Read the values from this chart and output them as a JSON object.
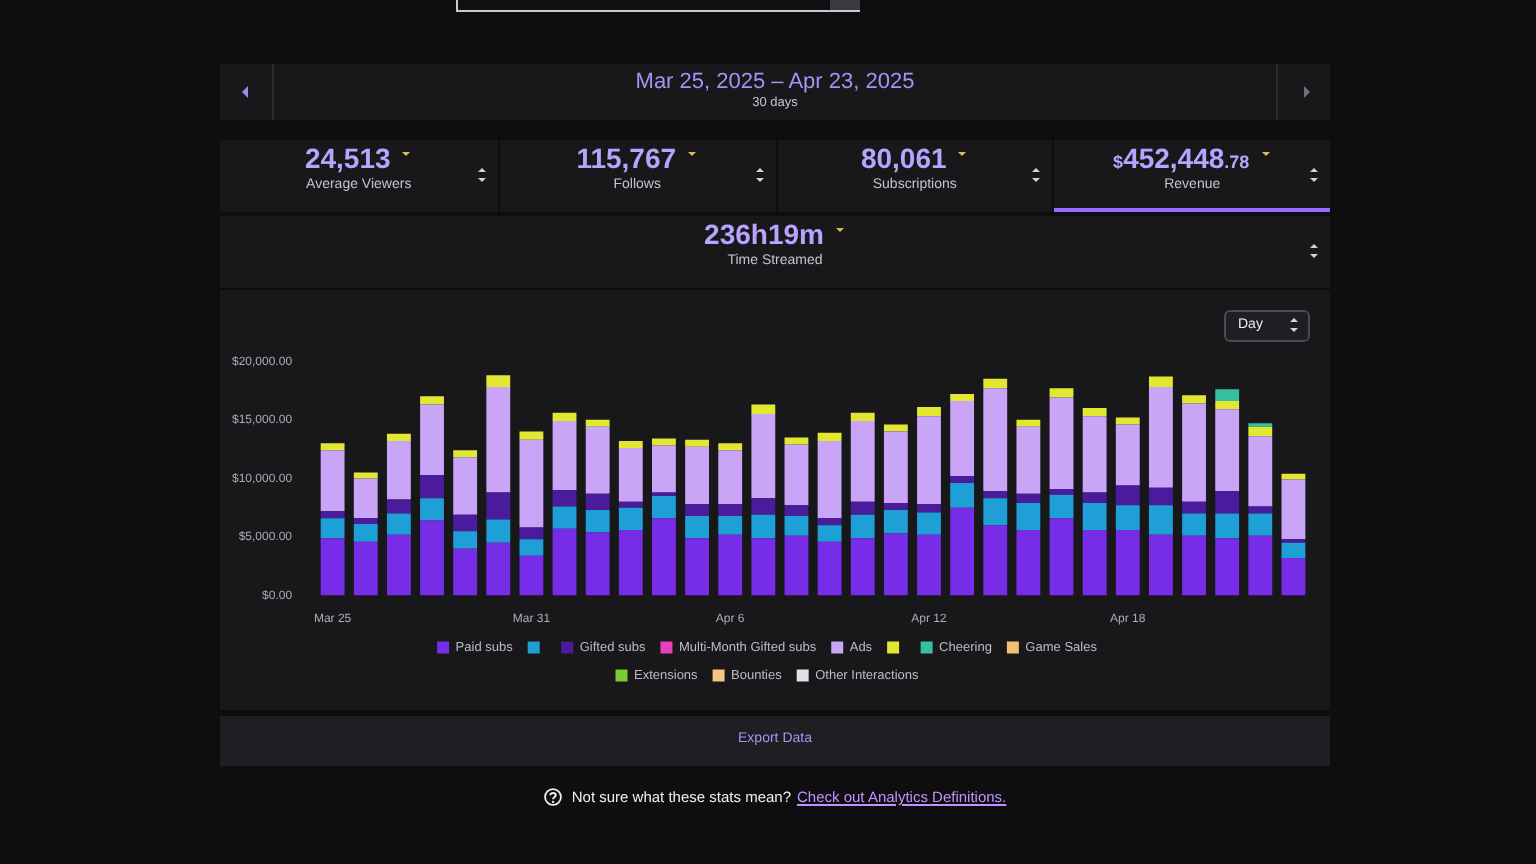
{
  "chart_data": [
    {
      "type": "other",
      "title": "Mar 25, 2025 – Apr 23, 2025",
      "subtitle": "30 days",
      "annotations": [
        "24,513",
        "Average Viewers",
        "115,767",
        "Follows",
        "80,061",
        "Subscriptions",
        "$452,448.78",
        "Revenue",
        "236h19m",
        "Time Streamed"
      ]
    },
    {
      "type": "bar",
      "stacked": true,
      "legend": "bottom",
      "categories": [
        "Mar 25",
        null,
        null,
        null,
        null,
        null,
        "Mar 31",
        null,
        null,
        null,
        null,
        null,
        "Apr 6",
        null,
        null,
        null,
        null,
        null,
        "Apr 12",
        null,
        null,
        null,
        null,
        null,
        "Apr 18",
        null,
        null,
        null,
        null,
        null
      ],
      "ylim": [
        0,
        20000
      ],
      "yticks": [
        {
          "value": 0,
          "label": "$0.00"
        },
        {
          "value": 5000,
          "label": "$5,000.00"
        },
        {
          "value": 10000,
          "label": "$10,000.00"
        },
        {
          "value": 15000,
          "label": "$15,000.00"
        },
        {
          "value": 20000,
          "label": "$20,000.00"
        }
      ],
      "series": [
        {
          "name": "Paid subs",
          "color": "#772ce8",
          "values": [
            4900,
            4600,
            5200,
            6400,
            4000,
            4500,
            3400,
            5700,
            5400,
            5600,
            6600,
            4900,
            5200,
            4900,
            5100,
            4600,
            4900,
            5300,
            5200,
            7500,
            6000,
            5600,
            6600,
            5600,
            5600,
            5200,
            5100,
            4900,
            5100,
            3200
          ]
        },
        {
          "color": "#1e9fd6",
          "values": [
            1700,
            1500,
            1800,
            1900,
            1500,
            2000,
            1400,
            1900,
            1900,
            1900,
            1900,
            1900,
            1600,
            2000,
            1700,
            1400,
            2000,
            2000,
            1900,
            2100,
            2300,
            2300,
            2000,
            2300,
            2100,
            2500,
            1900,
            2100,
            1900,
            1300
          ]
        },
        {
          "name": "Gifted subs",
          "color": "#4b1b9e",
          "values": [
            600,
            500,
            1200,
            2000,
            1400,
            2300,
            1000,
            1400,
            1400,
            500,
            300,
            1000,
            1000,
            1400,
            900,
            600,
            1100,
            600,
            700,
            600,
            600,
            800,
            500,
            900,
            1700,
            1500,
            1000,
            1900,
            600,
            300
          ]
        },
        {
          "name": "Multi-Month Gifted subs",
          "color": "#e83fbe",
          "values": [
            null,
            null,
            null,
            null,
            null,
            null,
            null,
            null,
            null,
            null,
            null,
            null,
            null,
            null,
            null,
            null,
            null,
            null,
            null,
            null,
            null,
            null,
            null,
            null,
            null,
            null,
            null,
            null,
            null,
            null
          ]
        },
        {
          "name": "Ads",
          "color": "#c8a5f7",
          "values": [
            5200,
            3400,
            5000,
            6000,
            4900,
            9000,
            7500,
            5900,
            5700,
            4600,
            4000,
            4900,
            4600,
            7200,
            5200,
            6600,
            6900,
            6100,
            7500,
            6400,
            8800,
            5700,
            7800,
            6500,
            5200,
            8600,
            8400,
            7000,
            6000,
            5100
          ]
        },
        {
          "color": "#e2e832",
          "values": [
            600,
            500,
            600,
            700,
            600,
            1000,
            700,
            700,
            600,
            600,
            600,
            600,
            600,
            800,
            600,
            700,
            700,
            600,
            800,
            600,
            800,
            600,
            800,
            700,
            600,
            900,
            700,
            700,
            800,
            500
          ]
        },
        {
          "name": "Cheering",
          "color": "#36bfa0",
          "values": [
            null,
            null,
            null,
            null,
            null,
            null,
            null,
            null,
            null,
            null,
            null,
            null,
            null,
            null,
            null,
            null,
            null,
            null,
            null,
            null,
            null,
            null,
            null,
            null,
            null,
            null,
            null,
            1000,
            300,
            null
          ]
        },
        {
          "name": "Game Sales",
          "color": "#f2c074",
          "values": [
            null,
            null,
            null,
            null,
            null,
            null,
            null,
            null,
            null,
            null,
            null,
            null,
            null,
            null,
            null,
            null,
            null,
            null,
            null,
            null,
            null,
            null,
            null,
            null,
            null,
            null,
            null,
            null,
            null,
            null
          ]
        },
        {
          "name": "Extensions",
          "color": "#7ccb35",
          "values": [
            null,
            null,
            null,
            null,
            null,
            null,
            null,
            null,
            null,
            null,
            null,
            null,
            null,
            null,
            null,
            null,
            null,
            null,
            null,
            null,
            null,
            null,
            null,
            null,
            null,
            null,
            null,
            null,
            null,
            null
          ]
        },
        {
          "name": "Bounties",
          "color": "#f6c57e",
          "values": [
            null,
            null,
            null,
            null,
            null,
            null,
            null,
            null,
            null,
            null,
            null,
            null,
            null,
            null,
            null,
            null,
            null,
            null,
            null,
            null,
            null,
            null,
            null,
            null,
            null,
            null,
            null,
            null,
            null,
            null
          ]
        },
        {
          "name": "Other Interactions",
          "color": "#e0e0e6",
          "values": [
            null,
            null,
            null,
            null,
            null,
            null,
            null,
            null,
            null,
            null,
            null,
            null,
            null,
            null,
            null,
            null,
            null,
            null,
            null,
            null,
            null,
            null,
            null,
            null,
            null,
            null,
            null,
            null,
            null,
            null
          ]
        }
      ],
      "annotations": [
        "Day",
        "Export Data",
        "Not sure what these stats mean?",
        "Check out Analytics Definitions."
      ]
    }
  ]
}
